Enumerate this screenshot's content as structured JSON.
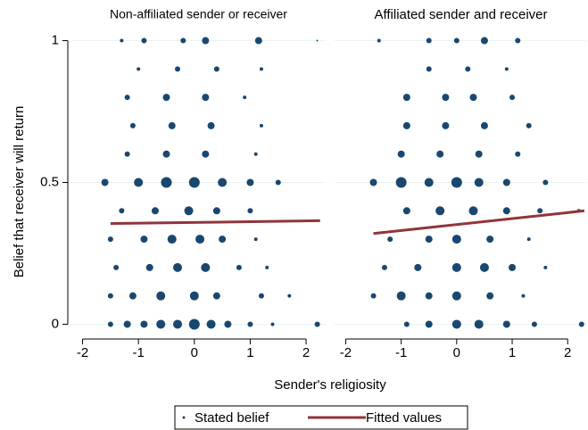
{
  "chart_data": {
    "type": "scatter",
    "ylabel": "Belief that receiver will return",
    "xlabel": "Sender's religiosity",
    "ylim": [
      -0.03,
      1.03
    ],
    "yticks": [
      0,
      0.5,
      1
    ],
    "xlim": [
      -2.2,
      2.35
    ],
    "xticks": [
      -2,
      -1,
      0,
      1,
      2
    ],
    "grid": true,
    "legend": [
      "Stated belief",
      "Fitted values"
    ],
    "point_color": "#1a476f",
    "line_color": "#90353b",
    "panels": [
      {
        "title": "Non-affiliated sender or receiver",
        "points": {
          "x": [
            -1.5,
            -1.2,
            -0.9,
            -0.6,
            -0.3,
            0,
            0.3,
            0.6,
            1.0,
            1.4,
            2.2,
            -1.5,
            -1.1,
            -0.6,
            0,
            0.4,
            1.2,
            1.7,
            -1.4,
            -0.8,
            -0.3,
            0.2,
            0.8,
            1.3,
            -1.5,
            -0.9,
            -0.4,
            0.1,
            0.5,
            1.1,
            -1.3,
            -0.7,
            -0.1,
            0.4,
            1.0,
            -1.6,
            -1.0,
            -0.5,
            0,
            0.5,
            1.0,
            1.5,
            -1.2,
            -0.5,
            0.2,
            1.1,
            -1.1,
            -0.4,
            0.3,
            1.2,
            -1.2,
            -0.5,
            0.2,
            0.9,
            -1.0,
            -0.3,
            0.4,
            1.2,
            -1.3,
            -0.9,
            -0.2,
            0.2,
            1.15,
            2.2
          ],
          "values": [
            0,
            0,
            0,
            0,
            0,
            0,
            0,
            0,
            0,
            0,
            0,
            0.1,
            0.1,
            0.1,
            0.1,
            0.1,
            0.1,
            0.1,
            0.2,
            0.2,
            0.2,
            0.2,
            0.2,
            0.2,
            0.3,
            0.3,
            0.3,
            0.3,
            0.3,
            0.3,
            0.4,
            0.4,
            0.4,
            0.4,
            0.4,
            0.5,
            0.5,
            0.5,
            0.5,
            0.5,
            0.5,
            0.5,
            0.6,
            0.6,
            0.6,
            0.6,
            0.7,
            0.7,
            0.7,
            0.7,
            0.8,
            0.8,
            0.8,
            0.8,
            0.9,
            0.9,
            0.9,
            0.9,
            1,
            1,
            1,
            1,
            1,
            1
          ],
          "sizes": [
            3,
            4,
            4,
            5,
            5,
            6,
            5,
            4,
            3,
            2,
            3,
            3,
            4,
            5,
            5,
            4,
            3,
            2,
            3,
            4,
            5,
            5,
            3,
            2,
            3,
            4,
            5,
            5,
            4,
            2,
            3,
            4,
            5,
            4,
            3,
            4,
            5,
            6,
            6,
            5,
            4,
            3,
            3,
            4,
            4,
            2,
            3,
            4,
            4,
            2,
            3,
            4,
            4,
            2,
            2,
            3,
            3,
            2,
            2,
            3,
            3,
            4,
            4,
            1
          ]
        },
        "fit": {
          "x": [
            -1.5,
            2.25
          ],
          "values": [
            0.355,
            0.365
          ]
        }
      },
      {
        "title": "Affiliated sender and receiver",
        "points": {
          "x": [
            -0.9,
            -0.5,
            0,
            0.4,
            0.9,
            1.4,
            2.25,
            -1.5,
            -1.0,
            -0.5,
            0,
            0.6,
            1.2,
            -1.3,
            -0.7,
            0,
            0.5,
            1.0,
            1.6,
            -1.2,
            -0.5,
            0,
            0.6,
            1.3,
            -0.9,
            -0.3,
            0.3,
            0.9,
            1.5,
            2.2,
            -1.5,
            -1.0,
            -0.5,
            0,
            0.4,
            0.9,
            1.6,
            -1.0,
            -0.3,
            0.4,
            1.1,
            -0.9,
            -0.2,
            0.5,
            1.3,
            -0.9,
            -0.2,
            0.3,
            1.0,
            -0.5,
            0.2,
            0.9,
            -1.4,
            -0.5,
            0,
            0.5,
            1.1
          ],
          "values": [
            0,
            0,
            0,
            0,
            0,
            0,
            0,
            0.1,
            0.1,
            0.1,
            0.1,
            0.1,
            0.1,
            0.2,
            0.2,
            0.2,
            0.2,
            0.2,
            0.2,
            0.3,
            0.3,
            0.3,
            0.3,
            0.3,
            0.4,
            0.4,
            0.4,
            0.4,
            0.4,
            0.4,
            0.5,
            0.5,
            0.5,
            0.5,
            0.5,
            0.5,
            0.5,
            0.6,
            0.6,
            0.6,
            0.6,
            0.7,
            0.7,
            0.7,
            0.7,
            0.8,
            0.8,
            0.8,
            0.8,
            0.9,
            0.9,
            0.9,
            1,
            1,
            1,
            1,
            1
          ],
          "sizes": [
            3,
            4,
            5,
            5,
            4,
            3,
            3,
            3,
            5,
            4,
            5,
            4,
            2,
            3,
            4,
            5,
            5,
            4,
            2,
            3,
            4,
            5,
            4,
            2,
            4,
            5,
            5,
            4,
            3,
            2,
            4,
            6,
            5,
            6,
            5,
            4,
            3,
            4,
            4,
            4,
            3,
            4,
            4,
            4,
            3,
            4,
            4,
            4,
            3,
            3,
            3,
            2,
            2,
            3,
            3,
            4,
            3
          ]
        },
        "fit": {
          "x": [
            -1.5,
            2.3
          ],
          "values": [
            0.32,
            0.4
          ]
        }
      }
    ]
  }
}
